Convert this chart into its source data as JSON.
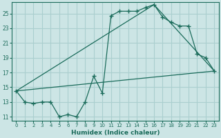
{
  "xlabel": "Humidex (Indice chaleur)",
  "xlim": [
    -0.5,
    23.5
  ],
  "ylim": [
    10.5,
    26.5
  ],
  "xticks": [
    0,
    1,
    2,
    3,
    4,
    5,
    6,
    7,
    8,
    9,
    10,
    11,
    12,
    13,
    14,
    15,
    16,
    17,
    18,
    19,
    20,
    21,
    22,
    23
  ],
  "yticks": [
    11,
    13,
    15,
    17,
    19,
    21,
    23,
    25
  ],
  "background_color": "#cce5e5",
  "grid_color": "#aacfcf",
  "line_color": "#1a6b5a",
  "curve1_x": [
    0,
    1,
    2,
    3,
    4,
    5,
    6,
    7,
    8,
    9,
    10,
    11,
    12,
    13,
    14,
    15,
    16,
    17,
    18,
    19,
    20,
    21,
    22,
    23
  ],
  "curve1_y": [
    14.5,
    13.0,
    12.8,
    13.0,
    13.0,
    11.0,
    11.3,
    11.0,
    13.0,
    16.5,
    14.2,
    24.7,
    25.3,
    25.3,
    25.3,
    25.8,
    26.2,
    24.5,
    23.8,
    23.3,
    23.3,
    19.5,
    19.0,
    17.2
  ],
  "curve2_x": [
    0,
    23
  ],
  "curve2_y": [
    14.5,
    17.2
  ],
  "curve3_x": [
    0,
    16,
    23
  ],
  "curve3_y": [
    14.5,
    26.2,
    17.2
  ]
}
